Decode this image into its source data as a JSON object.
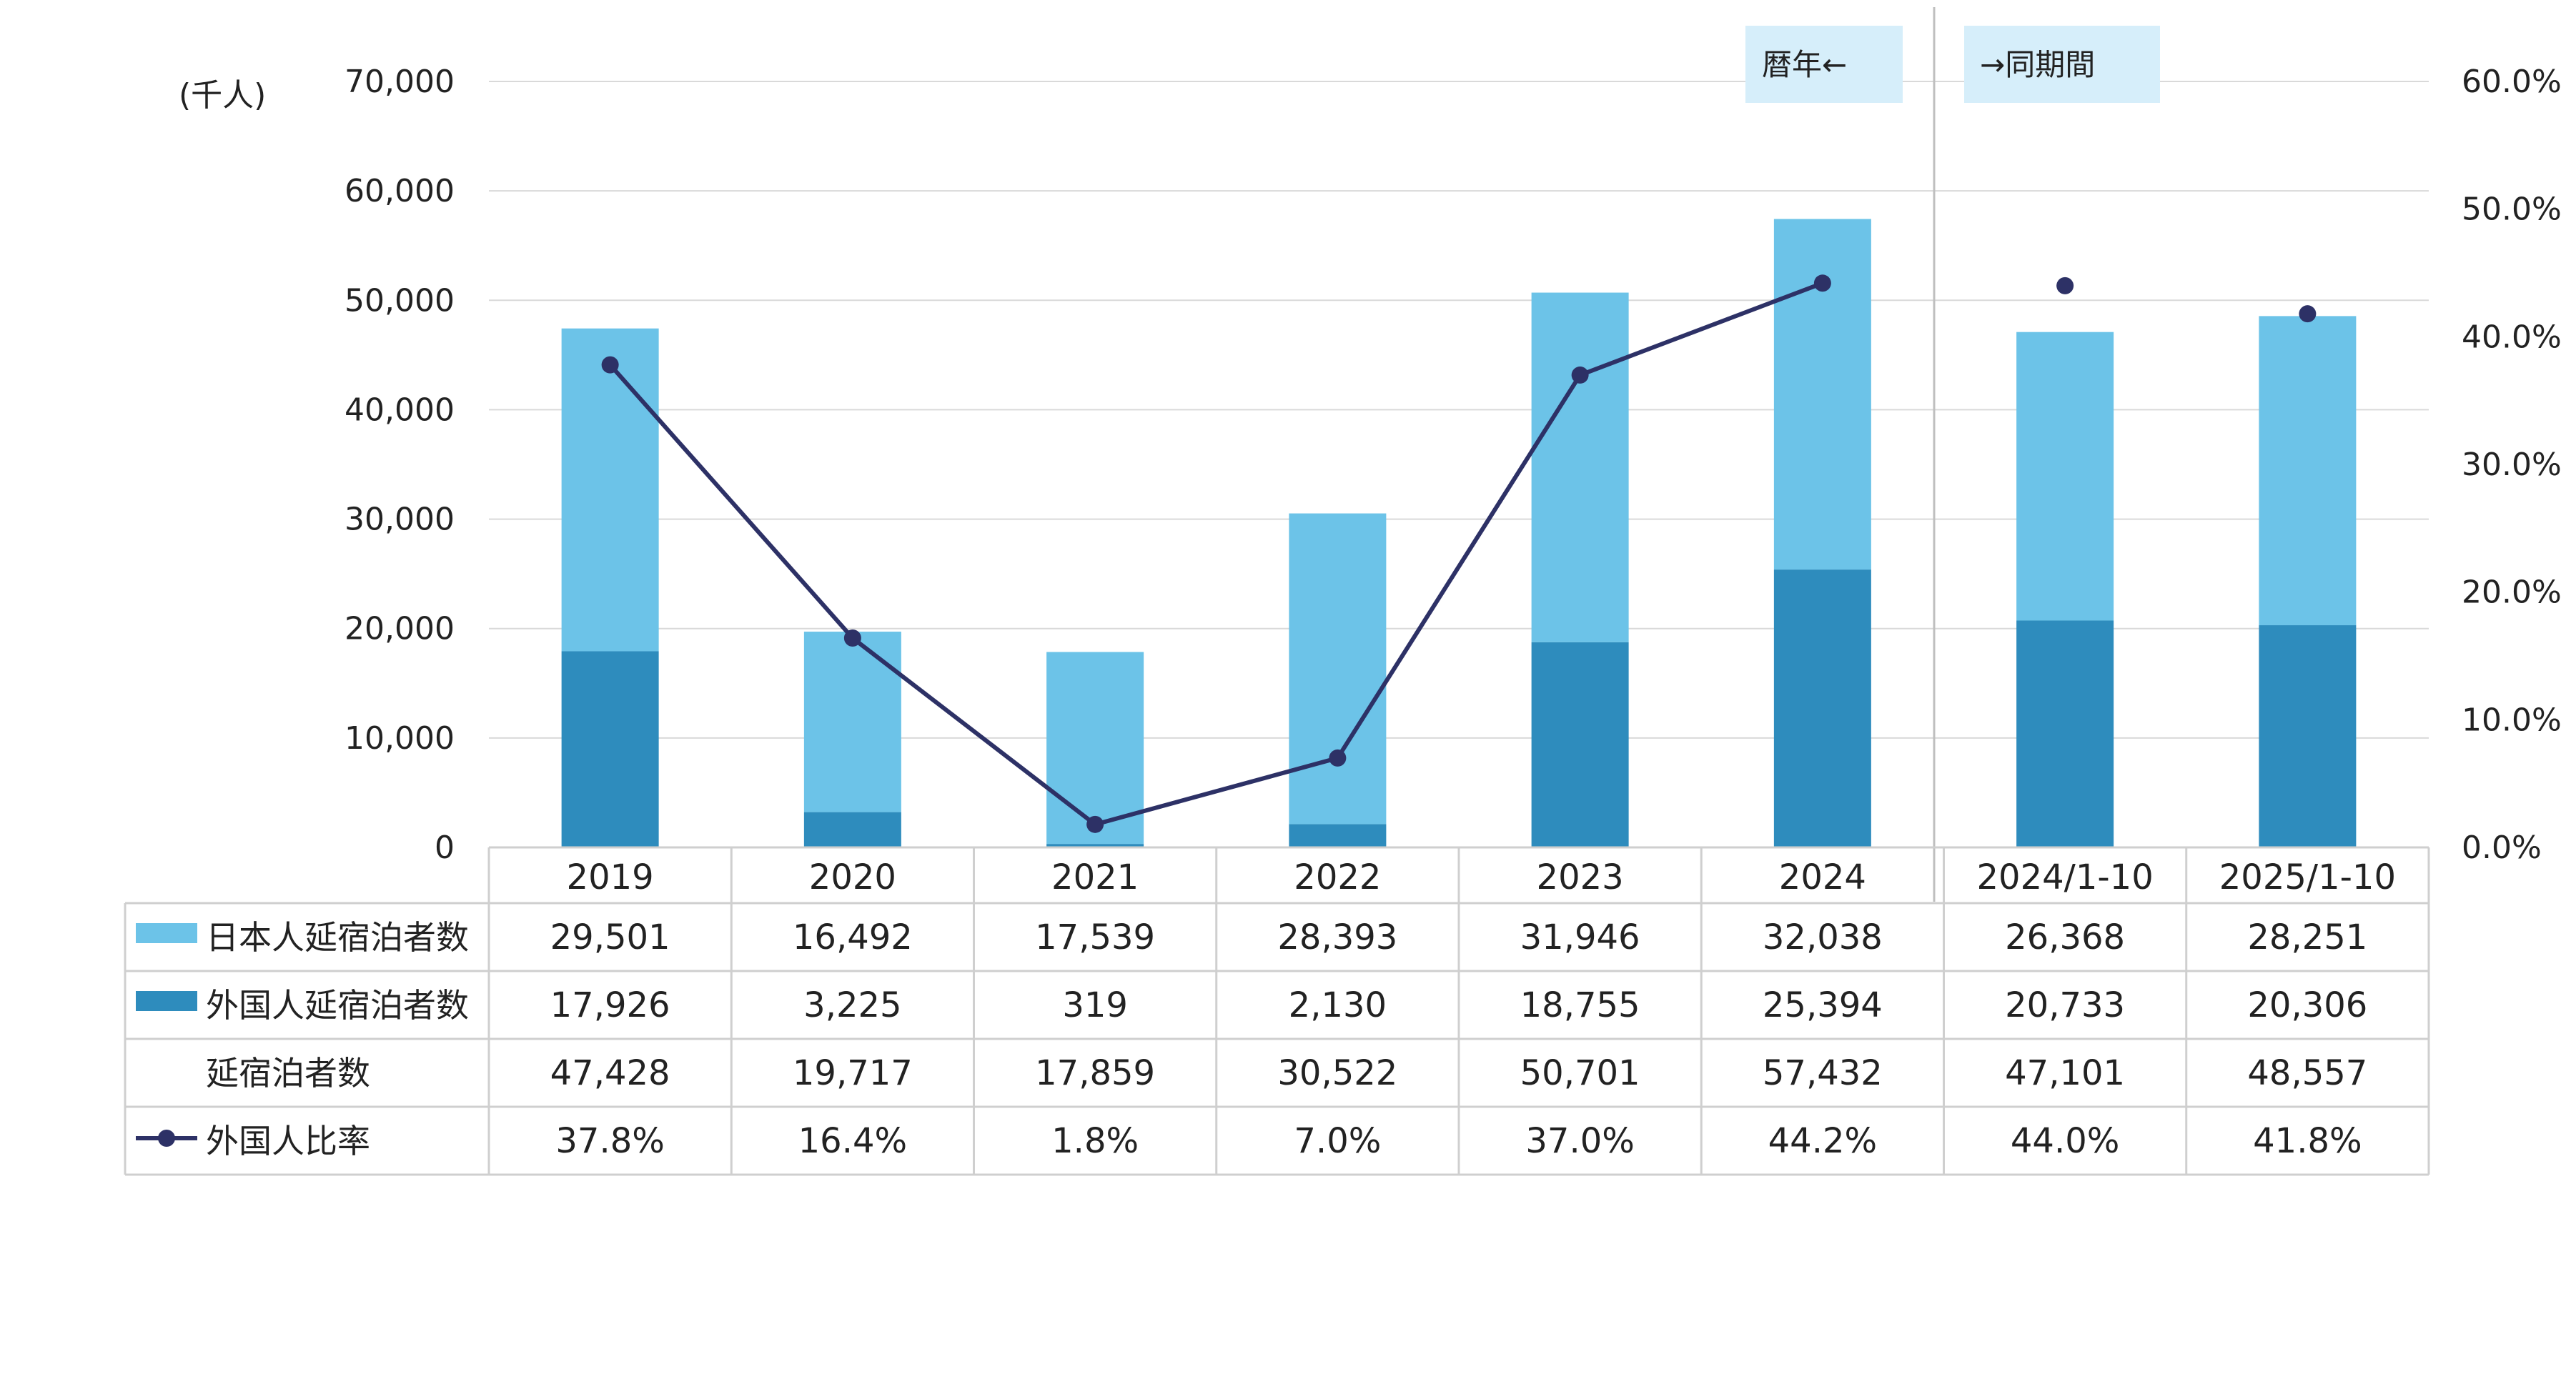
{
  "chart_data": {
    "type": "bar",
    "stacked": true,
    "categories": [
      "2019",
      "2020",
      "2021",
      "2022",
      "2023",
      "2024",
      "2024/1-10",
      "2025/1-10"
    ],
    "series": [
      {
        "name": "外国人延宿泊者数",
        "type": "bar",
        "axis": "left",
        "values": [
          17926,
          3225,
          319,
          2130,
          18755,
          25394,
          20733,
          20306
        ]
      },
      {
        "name": "日本人延宿泊者数",
        "type": "bar",
        "axis": "left",
        "values": [
          29501,
          16492,
          17539,
          28393,
          31946,
          32038,
          26368,
          28251
        ]
      },
      {
        "name": "外国人比率",
        "type": "line",
        "axis": "right",
        "values": [
          37.8,
          16.4,
          1.8,
          7.0,
          37.0,
          44.2,
          44.0,
          41.8
        ]
      }
    ],
    "totals": {
      "name": "延宿泊者数",
      "values": [
        47428,
        19717,
        17859,
        30522,
        50701,
        57432,
        47101,
        48557
      ]
    },
    "ylabel": "(千人)",
    "ylim": [
      0,
      70000
    ],
    "yticks": [
      "0",
      "10,000",
      "20,000",
      "30,000",
      "40,000",
      "50,000",
      "60,000",
      "70,000"
    ],
    "y2lim": [
      0,
      60
    ],
    "y2ticks": [
      "0.0%",
      "10.0%",
      "20.0%",
      "30.0%",
      "40.0%",
      "50.0%",
      "60.0%"
    ],
    "annotations": [
      "暦年←",
      "→同期間"
    ],
    "table": {
      "rows": [
        {
          "label": "日本人延宿泊者数",
          "values": [
            "29,501",
            "16,492",
            "17,539",
            "28,393",
            "31,946",
            "32,038",
            "26,368",
            "28,251"
          ]
        },
        {
          "label": "外国人延宿泊者数",
          "values": [
            "17,926",
            "3,225",
            "319",
            "2,130",
            "18,755",
            "25,394",
            "20,733",
            "20,306"
          ]
        },
        {
          "label": "延宿泊者数",
          "values": [
            "47,428",
            "19,717",
            "17,859",
            "30,522",
            "50,701",
            "57,432",
            "47,101",
            "48,557"
          ]
        },
        {
          "label": "外国人比率",
          "values": [
            "37.8%",
            "16.4%",
            "1.8%",
            "7.0%",
            "37.0%",
            "44.2%",
            "44.0%",
            "41.8%"
          ]
        }
      ]
    },
    "grid": true,
    "legend_position": "table-left",
    "colors": {
      "japanese": "#6cc3e8",
      "foreign": "#2e8cbd",
      "line": "#2d3166",
      "grid": "#d9d9d9",
      "annotation_bg": "#d6eefa"
    }
  }
}
